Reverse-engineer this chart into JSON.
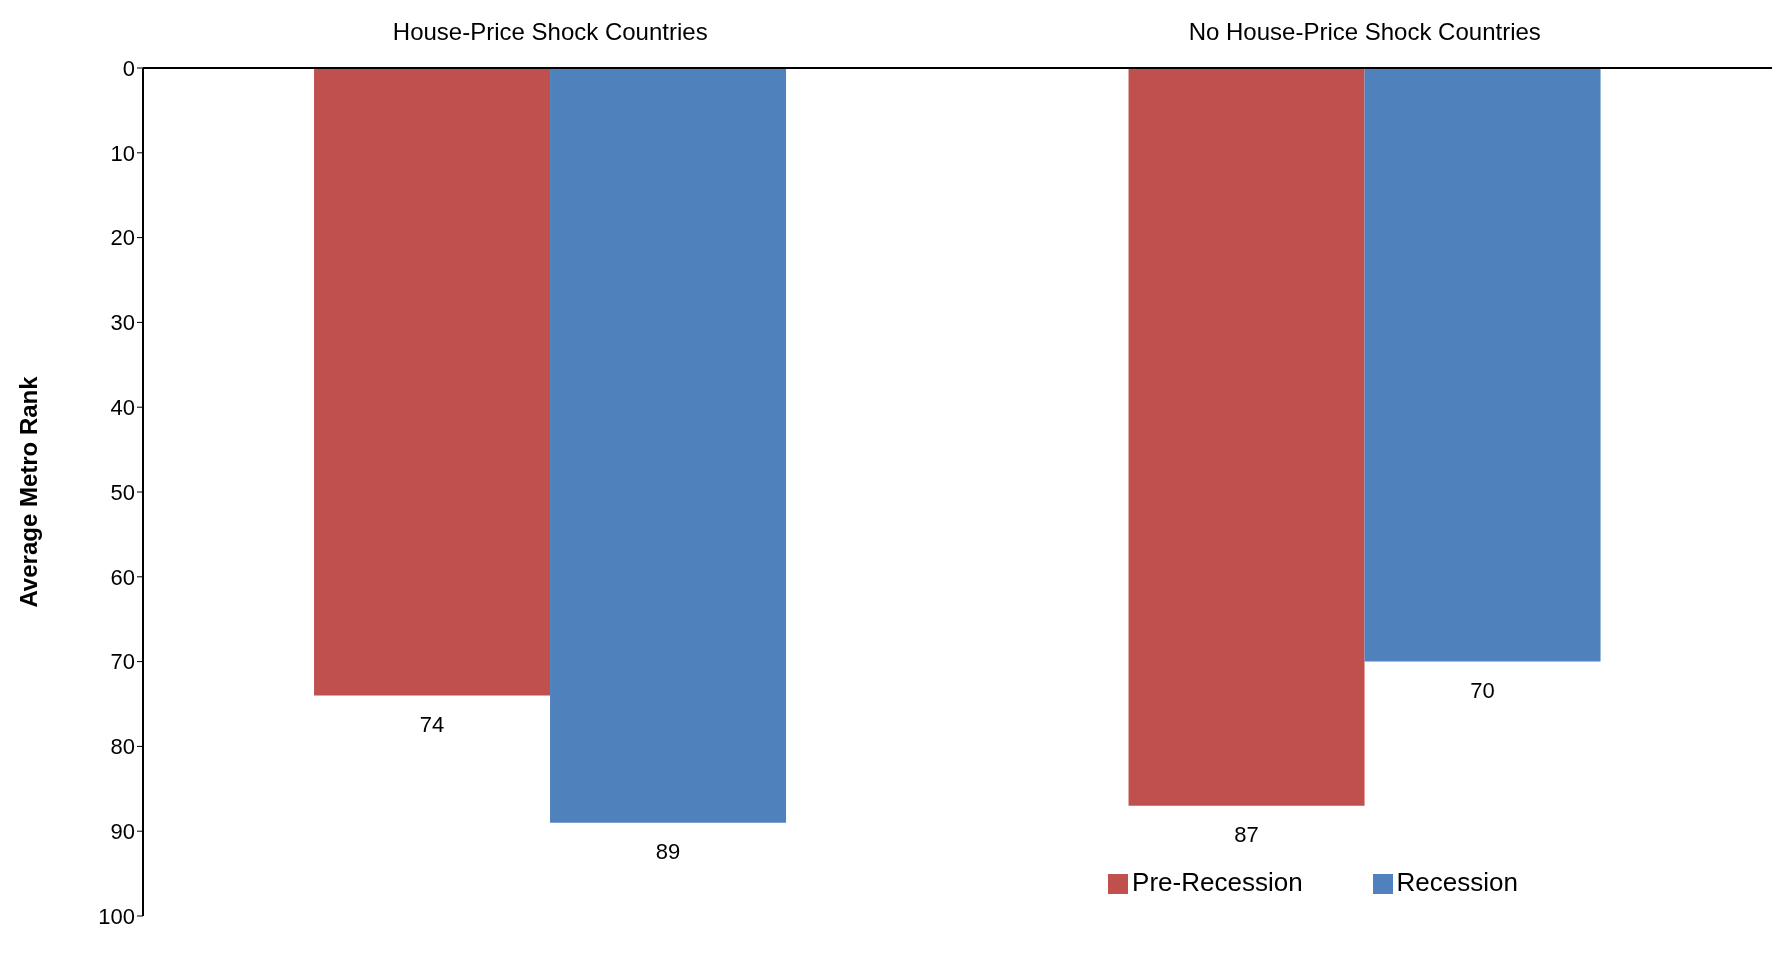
{
  "chart_data": {
    "type": "bar",
    "categories": [
      "House-Price Shock Countries",
      "No House-Price Shock Countries"
    ],
    "ylabel": "Average Metro Rank",
    "series": [
      {
        "name": "Pre-Recession",
        "color": "#c0504d",
        "values": [
          74,
          87
        ]
      },
      {
        "name": "Recession",
        "color": "#4f81bd",
        "values": [
          89,
          70
        ]
      }
    ],
    "ylim": [
      100,
      0
    ],
    "yticks": [
      0,
      10,
      20,
      30,
      40,
      50,
      60,
      70,
      80,
      90,
      100
    ],
    "grid": false,
    "legend": "bottom right",
    "data_labels": true
  }
}
